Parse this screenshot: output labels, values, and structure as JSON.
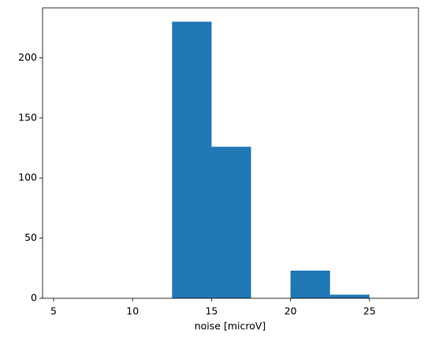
{
  "chart_data": {
    "type": "histogram",
    "x_label": "noise  [microV]",
    "bins": [
      5,
      7.5,
      10,
      12.5,
      15,
      17.5,
      20,
      22.5,
      25,
      27.5
    ],
    "values": [
      0,
      0,
      0,
      230,
      126,
      0,
      23,
      3,
      0
    ],
    "color": "#1f77b4",
    "xlim": [
      4.3,
      28.1
    ],
    "ylim": [
      0,
      241.5
    ],
    "xticks": [
      5,
      10,
      15,
      20,
      25
    ],
    "yticks": [
      0,
      50,
      100,
      150,
      200
    ]
  }
}
